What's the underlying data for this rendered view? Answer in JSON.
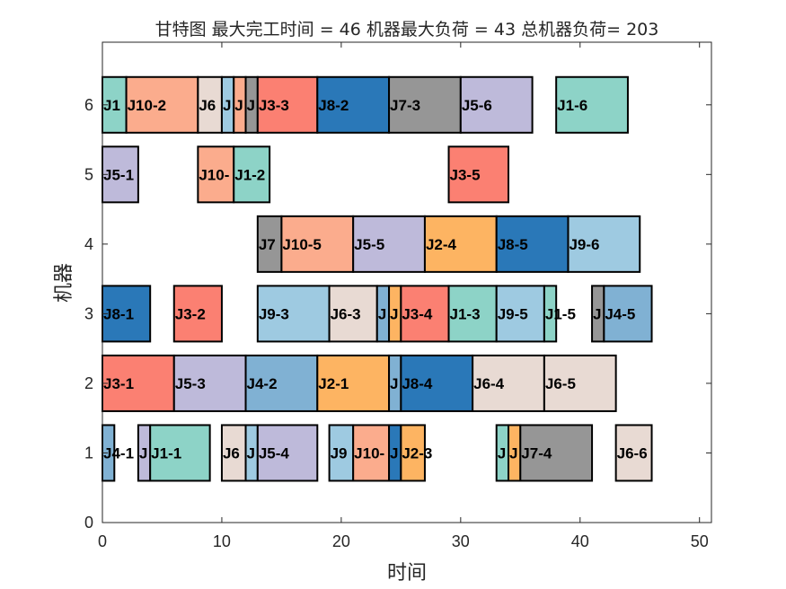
{
  "chart_data": {
    "type": "gantt",
    "title": "甘特图 最大完工时间 = 46 机器最大负荷 = 43 总机器负荷= 203",
    "xlabel": "时间",
    "ylabel": "机器",
    "xlim": [
      0,
      51
    ],
    "ylim": [
      0,
      6.9
    ],
    "xticks": [
      0,
      10,
      20,
      30,
      40,
      50
    ],
    "yticks": [
      0,
      1,
      2,
      3,
      4,
      5,
      6
    ],
    "grid": false,
    "job_colors": {
      "J1": "#8dd3c7",
      "J2": "#fdb462",
      "J3": "#fb8072",
      "J4": "#80b1d3",
      "J5": "#bebada",
      "J6": "#e8dad3",
      "J7": "#969696",
      "J8": "#2a78b8",
      "J9": "#9ecae1",
      "J10": "#fbac8d"
    },
    "tasks": [
      {
        "machine": 6,
        "job": "J1",
        "label": "J1",
        "start": 0,
        "end": 2
      },
      {
        "machine": 6,
        "job": "J10",
        "label": "J10-2",
        "start": 2,
        "end": 8
      },
      {
        "machine": 6,
        "job": "J6",
        "label": "J6",
        "start": 8,
        "end": 10
      },
      {
        "machine": 6,
        "job": "J9",
        "label": "J",
        "start": 10,
        "end": 11
      },
      {
        "machine": 6,
        "job": "J10",
        "label": "J",
        "start": 11,
        "end": 12
      },
      {
        "machine": 6,
        "job": "J7",
        "label": "J",
        "start": 12,
        "end": 13
      },
      {
        "machine": 6,
        "job": "J3",
        "label": "J3-3",
        "start": 13,
        "end": 18
      },
      {
        "machine": 6,
        "job": "J8",
        "label": "J8-2",
        "start": 18,
        "end": 24
      },
      {
        "machine": 6,
        "job": "J7",
        "label": "J7-3",
        "start": 24,
        "end": 30
      },
      {
        "machine": 6,
        "job": "J5",
        "label": "J5-6",
        "start": 30,
        "end": 36
      },
      {
        "machine": 6,
        "job": "J1",
        "label": "J1-6",
        "start": 38,
        "end": 44
      },
      {
        "machine": 5,
        "job": "J5",
        "label": "J5-1",
        "start": 0,
        "end": 3
      },
      {
        "machine": 5,
        "job": "J10",
        "label": "J10-",
        "start": 8,
        "end": 11
      },
      {
        "machine": 5,
        "job": "J1",
        "label": "J1-2",
        "start": 11,
        "end": 14
      },
      {
        "machine": 5,
        "job": "J3",
        "label": "J3-5",
        "start": 29,
        "end": 34
      },
      {
        "machine": 4,
        "job": "J7",
        "label": "J7",
        "start": 13,
        "end": 15
      },
      {
        "machine": 4,
        "job": "J10",
        "label": "J10-5",
        "start": 15,
        "end": 21
      },
      {
        "machine": 4,
        "job": "J5",
        "label": "J5-5",
        "start": 21,
        "end": 27
      },
      {
        "machine": 4,
        "job": "J2",
        "label": "J2-4",
        "start": 27,
        "end": 33
      },
      {
        "machine": 4,
        "job": "J8",
        "label": "J8-5",
        "start": 33,
        "end": 39
      },
      {
        "machine": 4,
        "job": "J9",
        "label": "J9-6",
        "start": 39,
        "end": 45
      },
      {
        "machine": 3,
        "job": "J8",
        "label": "J8-1",
        "start": 0,
        "end": 4
      },
      {
        "machine": 3,
        "job": "J3",
        "label": "J3-2",
        "start": 6,
        "end": 10
      },
      {
        "machine": 3,
        "job": "J9",
        "label": "J9-3",
        "start": 13,
        "end": 19
      },
      {
        "machine": 3,
        "job": "J6",
        "label": "J6-3",
        "start": 19,
        "end": 23
      },
      {
        "machine": 3,
        "job": "J4",
        "label": "J",
        "start": 23,
        "end": 24
      },
      {
        "machine": 3,
        "job": "J2",
        "label": "J",
        "start": 24,
        "end": 25
      },
      {
        "machine": 3,
        "job": "J3",
        "label": "J3-4",
        "start": 25,
        "end": 29
      },
      {
        "machine": 3,
        "job": "J1",
        "label": "J1-3",
        "start": 29,
        "end": 33
      },
      {
        "machine": 3,
        "job": "J9",
        "label": "J9-5",
        "start": 33,
        "end": 37
      },
      {
        "machine": 3,
        "job": "J1",
        "label": "J1-5",
        "start": 37,
        "end": 38
      },
      {
        "machine": 3,
        "job": "J7",
        "label": "J",
        "start": 41,
        "end": 42
      },
      {
        "machine": 3,
        "job": "J4",
        "label": "J4-5",
        "start": 42,
        "end": 46
      },
      {
        "machine": 2,
        "job": "J3",
        "label": "J3-1",
        "start": 0,
        "end": 6
      },
      {
        "machine": 2,
        "job": "J5",
        "label": "J5-3",
        "start": 6,
        "end": 12
      },
      {
        "machine": 2,
        "job": "J4",
        "label": "J4-2",
        "start": 12,
        "end": 18
      },
      {
        "machine": 2,
        "job": "J2",
        "label": "J2-1",
        "start": 18,
        "end": 24
      },
      {
        "machine": 2,
        "job": "J4",
        "label": "J",
        "start": 24,
        "end": 25
      },
      {
        "machine": 2,
        "job": "J8",
        "label": "J8-4",
        "start": 25,
        "end": 31
      },
      {
        "machine": 2,
        "job": "J6",
        "label": "J6-4",
        "start": 31,
        "end": 37
      },
      {
        "machine": 2,
        "job": "J6",
        "label": "J6-5",
        "start": 37,
        "end": 43
      },
      {
        "machine": 1,
        "job": "J4",
        "label": "J4-1",
        "start": 0,
        "end": 1
      },
      {
        "machine": 1,
        "job": "J5",
        "label": "J",
        "start": 3,
        "end": 4
      },
      {
        "machine": 1,
        "job": "J1",
        "label": "J1-1",
        "start": 4,
        "end": 9
      },
      {
        "machine": 1,
        "job": "J6",
        "label": "J6",
        "start": 10,
        "end": 12
      },
      {
        "machine": 1,
        "job": "J9",
        "label": "J",
        "start": 12,
        "end": 13
      },
      {
        "machine": 1,
        "job": "J5",
        "label": "J5-4",
        "start": 13,
        "end": 18
      },
      {
        "machine": 1,
        "job": "J9",
        "label": "J9",
        "start": 19,
        "end": 21
      },
      {
        "machine": 1,
        "job": "J10",
        "label": "J10-",
        "start": 21,
        "end": 24
      },
      {
        "machine": 1,
        "job": "J8",
        "label": "J",
        "start": 24,
        "end": 25
      },
      {
        "machine": 1,
        "job": "J2",
        "label": "J2-3",
        "start": 25,
        "end": 27
      },
      {
        "machine": 1,
        "job": "J1",
        "label": "J",
        "start": 33,
        "end": 34
      },
      {
        "machine": 1,
        "job": "J2",
        "label": "J",
        "start": 34,
        "end": 35
      },
      {
        "machine": 1,
        "job": "J7",
        "label": "J7-4",
        "start": 35,
        "end": 41
      },
      {
        "machine": 1,
        "job": "J6",
        "label": "J6-6",
        "start": 43,
        "end": 46
      }
    ]
  }
}
